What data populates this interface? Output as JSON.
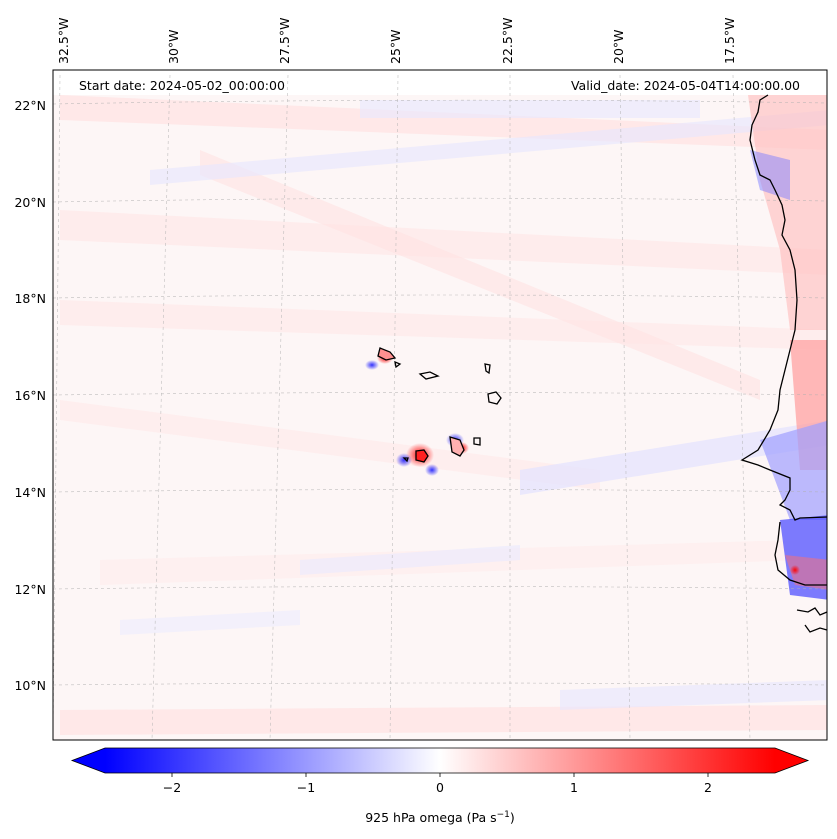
{
  "map": {
    "annotations": {
      "start": "Start date: 2024-05-02_00:00:00",
      "valid": "Valid_date: 2024-05-04T14:00:00.00"
    },
    "lon_labels": [
      "32.5°W",
      "30°W",
      "27.5°W",
      "25°W",
      "22.5°W",
      "20°W",
      "17.5°W"
    ],
    "lat_labels": [
      "22°N",
      "20°N",
      "18°N",
      "16°N",
      "14°N",
      "12°N",
      "10°N"
    ],
    "field_colors": {
      "positive": "#ff0000",
      "negative": "#0000ff",
      "neutral": "#ffffff",
      "coast": "#000000"
    }
  },
  "colorbar": {
    "ticks": [
      "−2",
      "−1",
      "0",
      "1",
      "2"
    ],
    "label_main": "925 hPa omega (Pa s",
    "label_sup": "−1",
    "label_close": ")",
    "range": [
      -2.6,
      2.6
    ],
    "extend": "both",
    "colormap": "bwr"
  }
}
